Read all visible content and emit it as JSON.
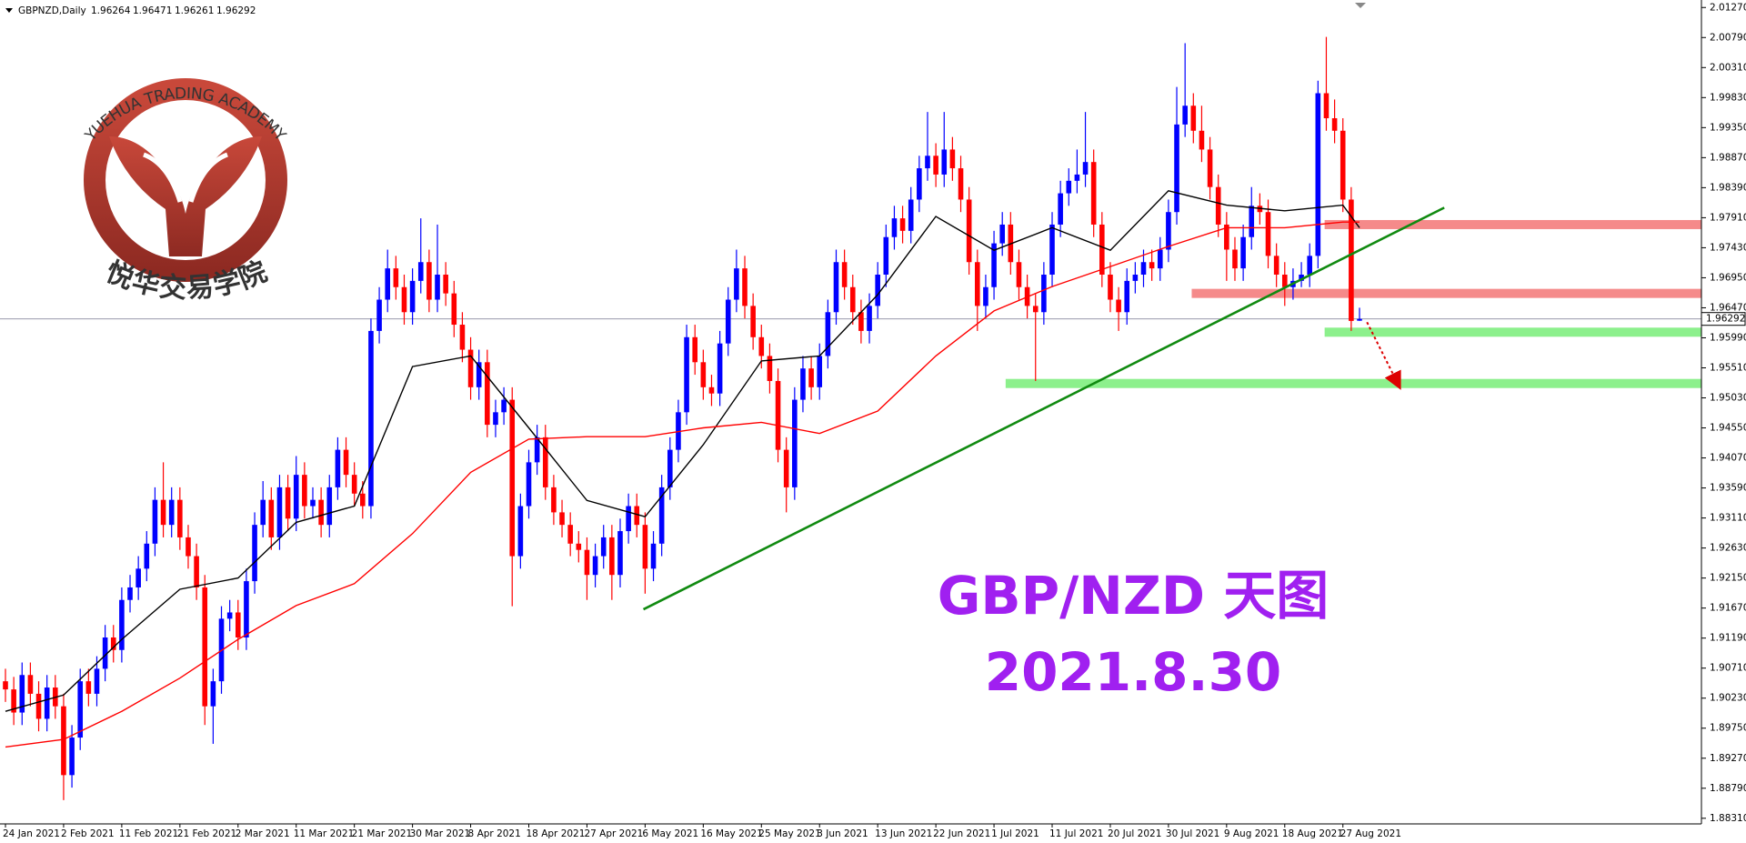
{
  "chart_data": {
    "type": "candlestick",
    "symbol": "GBPNZD,Daily",
    "title": "GBP/NZD 天图",
    "subtitle": "2021.8.30",
    "logo_text": "YUEHUA TRADING ACADEMY",
    "logo_subtitle": "悦华交易学院",
    "up_color": "#0000ff",
    "down_color": "#ff0000",
    "grid": false,
    "ylim": [
      1.8822,
      2.0139
    ],
    "yticks": [
      {
        "value": 2.0127,
        "label": "2.01270"
      },
      {
        "value": 2.0079,
        "label": "2.00790"
      },
      {
        "value": 2.0031,
        "label": "2.00310"
      },
      {
        "value": 1.9983,
        "label": "1.99830"
      },
      {
        "value": 1.9935,
        "label": "1.99350"
      },
      {
        "value": 1.9887,
        "label": "1.98870"
      },
      {
        "value": 1.9839,
        "label": "1.98390"
      },
      {
        "value": 1.9791,
        "label": "1.97910"
      },
      {
        "value": 1.9743,
        "label": "1.97430"
      },
      {
        "value": 1.9695,
        "label": "1.96950"
      },
      {
        "value": 1.9647,
        "label": "1.96470"
      },
      {
        "value": 1.9599,
        "label": "1.95990"
      },
      {
        "value": 1.9551,
        "label": "1.95510"
      },
      {
        "value": 1.9503,
        "label": "1.95030"
      },
      {
        "value": 1.9455,
        "label": "1.94550"
      },
      {
        "value": 1.9407,
        "label": "1.94070"
      },
      {
        "value": 1.9359,
        "label": "1.93590"
      },
      {
        "value": 1.9311,
        "label": "1.93110"
      },
      {
        "value": 1.9263,
        "label": "1.92630"
      },
      {
        "value": 1.9215,
        "label": "1.92150"
      },
      {
        "value": 1.9167,
        "label": "1.91670"
      },
      {
        "value": 1.9119,
        "label": "1.91190"
      },
      {
        "value": 1.9071,
        "label": "1.90710"
      },
      {
        "value": 1.9023,
        "label": "1.90230"
      },
      {
        "value": 1.8975,
        "label": "1.89750"
      },
      {
        "value": 1.8927,
        "label": "1.89270"
      },
      {
        "value": 1.8879,
        "label": "1.88790"
      },
      {
        "value": 1.8831,
        "label": "1.88310"
      }
    ],
    "categories": [
      "24 Jan 2021",
      null,
      null,
      null,
      null,
      null,
      null,
      "2 Feb 2021",
      null,
      null,
      null,
      null,
      null,
      null,
      "11 Feb 2021",
      null,
      null,
      null,
      null,
      null,
      null,
      "21 Feb 2021",
      null,
      null,
      null,
      null,
      null,
      null,
      "2 Mar 2021",
      null,
      null,
      null,
      null,
      null,
      null,
      "11 Mar 2021",
      null,
      null,
      null,
      null,
      null,
      null,
      "21 Mar 2021",
      null,
      null,
      null,
      null,
      null,
      null,
      "30 Mar 2021",
      null,
      null,
      null,
      null,
      null,
      null,
      "8 Apr 2021",
      null,
      null,
      null,
      null,
      null,
      null,
      "18 Apr 2021",
      null,
      null,
      null,
      null,
      null,
      null,
      "27 Apr 2021",
      null,
      null,
      null,
      null,
      null,
      null,
      "6 May 2021",
      null,
      null,
      null,
      null,
      null,
      null,
      "16 May 2021",
      null,
      null,
      null,
      null,
      null,
      null,
      "25 May 2021",
      null,
      null,
      null,
      null,
      null,
      null,
      "3 Jun 2021",
      null,
      null,
      null,
      null,
      null,
      null,
      "13 Jun 2021",
      null,
      null,
      null,
      null,
      null,
      null,
      "22 Jun 2021",
      null,
      null,
      null,
      null,
      null,
      null,
      "1 Jul 2021",
      null,
      null,
      null,
      null,
      null,
      null,
      "11 Jul 2021",
      null,
      null,
      null,
      null,
      null,
      null,
      "20 Jul 2021",
      null,
      null,
      null,
      null,
      null,
      null,
      "30 Jul 2021",
      null,
      null,
      null,
      null,
      null,
      null,
      "9 Aug 2021",
      null,
      null,
      null,
      null,
      null,
      null,
      "18 Aug 2021",
      null,
      null,
      null,
      null,
      null,
      null,
      "27 Aug 2021",
      null,
      null
    ],
    "candles": [
      [
        1.905,
        1.907,
        1.9017,
        1.9037
      ],
      [
        1.9037,
        1.9057,
        1.898,
        1.9
      ],
      [
        1.9,
        1.908,
        1.898,
        1.906
      ],
      [
        1.906,
        1.908,
        1.901,
        1.903
      ],
      [
        1.903,
        1.905,
        1.897,
        1.899
      ],
      [
        1.899,
        1.906,
        1.897,
        1.904
      ],
      [
        1.904,
        1.906,
        1.899,
        1.901
      ],
      [
        1.901,
        1.903,
        1.886,
        1.89
      ],
      [
        1.89,
        1.898,
        1.888,
        1.896
      ],
      [
        1.896,
        1.907,
        1.894,
        1.905
      ],
      [
        1.905,
        1.907,
        1.901,
        1.903
      ],
      [
        1.903,
        1.909,
        1.901,
        1.907
      ],
      [
        1.907,
        1.914,
        1.905,
        1.912
      ],
      [
        1.912,
        1.914,
        1.908,
        1.91
      ],
      [
        1.91,
        1.92,
        1.908,
        1.918
      ],
      [
        1.918,
        1.922,
        1.916,
        1.92
      ],
      [
        1.92,
        1.925,
        1.918,
        1.923
      ],
      [
        1.923,
        1.929,
        1.921,
        1.927
      ],
      [
        1.927,
        1.936,
        1.925,
        1.934
      ],
      [
        1.934,
        1.94,
        1.928,
        1.93
      ],
      [
        1.93,
        1.936,
        1.928,
        1.934
      ],
      [
        1.934,
        1.936,
        1.926,
        1.928
      ],
      [
        1.928,
        1.93,
        1.923,
        1.925
      ],
      [
        1.925,
        1.927,
        1.918,
        1.92
      ],
      [
        1.92,
        1.922,
        1.898,
        1.901
      ],
      [
        1.901,
        1.907,
        1.895,
        1.905
      ],
      [
        1.905,
        1.917,
        1.903,
        1.915
      ],
      [
        1.915,
        1.918,
        1.913,
        1.916
      ],
      [
        1.916,
        1.918,
        1.91,
        1.912
      ],
      [
        1.912,
        1.923,
        1.91,
        1.921
      ],
      [
        1.921,
        1.932,
        1.919,
        1.93
      ],
      [
        1.93,
        1.937,
        1.928,
        1.934
      ],
      [
        1.934,
        1.936,
        1.926,
        1.928
      ],
      [
        1.928,
        1.938,
        1.926,
        1.936
      ],
      [
        1.936,
        1.938,
        1.929,
        1.931
      ],
      [
        1.931,
        1.941,
        1.929,
        1.938
      ],
      [
        1.938,
        1.94,
        1.931,
        1.933
      ],
      [
        1.933,
        1.936,
        1.931,
        1.934
      ],
      [
        1.934,
        1.936,
        1.928,
        1.93
      ],
      [
        1.93,
        1.938,
        1.928,
        1.936
      ],
      [
        1.936,
        1.944,
        1.934,
        1.942
      ],
      [
        1.942,
        1.944,
        1.936,
        1.938
      ],
      [
        1.938,
        1.94,
        1.933,
        1.935
      ],
      [
        1.935,
        1.937,
        1.931,
        1.933
      ],
      [
        1.933,
        1.963,
        1.931,
        1.961
      ],
      [
        1.961,
        1.968,
        1.959,
        1.966
      ],
      [
        1.966,
        1.974,
        1.964,
        1.971
      ],
      [
        1.971,
        1.973,
        1.966,
        1.968
      ],
      [
        1.968,
        1.97,
        1.962,
        1.964
      ],
      [
        1.964,
        1.971,
        1.962,
        1.969
      ],
      [
        1.969,
        1.979,
        1.967,
        1.972
      ],
      [
        1.972,
        1.974,
        1.964,
        1.966
      ],
      [
        1.966,
        1.978,
        1.964,
        1.97
      ],
      [
        1.97,
        1.972,
        1.965,
        1.967
      ],
      [
        1.967,
        1.969,
        1.96,
        1.962
      ],
      [
        1.962,
        1.964,
        1.956,
        1.958
      ],
      [
        1.958,
        1.96,
        1.95,
        1.952
      ],
      [
        1.952,
        1.958,
        1.95,
        1.956
      ],
      [
        1.956,
        1.958,
        1.944,
        1.946
      ],
      [
        1.946,
        1.95,
        1.944,
        1.948
      ],
      [
        1.948,
        1.952,
        1.946,
        1.95
      ],
      [
        1.95,
        1.952,
        1.917,
        1.925
      ],
      [
        1.925,
        1.935,
        1.923,
        1.933
      ],
      [
        1.933,
        1.942,
        1.931,
        1.94
      ],
      [
        1.94,
        1.946,
        1.938,
        1.944
      ],
      [
        1.944,
        1.946,
        1.934,
        1.936
      ],
      [
        1.936,
        1.938,
        1.93,
        1.932
      ],
      [
        1.932,
        1.934,
        1.928,
        1.93
      ],
      [
        1.93,
        1.932,
        1.925,
        1.927
      ],
      [
        1.927,
        1.929,
        1.924,
        1.926
      ],
      [
        1.926,
        1.928,
        1.918,
        1.922
      ],
      [
        1.922,
        1.927,
        1.92,
        1.925
      ],
      [
        1.925,
        1.93,
        1.923,
        1.928
      ],
      [
        1.928,
        1.93,
        1.918,
        1.922
      ],
      [
        1.922,
        1.931,
        1.92,
        1.929
      ],
      [
        1.929,
        1.935,
        1.927,
        1.933
      ],
      [
        1.933,
        1.935,
        1.928,
        1.93
      ],
      [
        1.93,
        1.932,
        1.919,
        1.923
      ],
      [
        1.923,
        1.929,
        1.921,
        1.927
      ],
      [
        1.927,
        1.938,
        1.925,
        1.936
      ],
      [
        1.936,
        1.944,
        1.934,
        1.942
      ],
      [
        1.942,
        1.95,
        1.94,
        1.948
      ],
      [
        1.948,
        1.962,
        1.946,
        1.96
      ],
      [
        1.96,
        1.962,
        1.954,
        1.956
      ],
      [
        1.956,
        1.958,
        1.95,
        1.952
      ],
      [
        1.952,
        1.954,
        1.949,
        1.951
      ],
      [
        1.951,
        1.961,
        1.949,
        1.959
      ],
      [
        1.959,
        1.968,
        1.957,
        1.966
      ],
      [
        1.966,
        1.974,
        1.964,
        1.971
      ],
      [
        1.971,
        1.973,
        1.963,
        1.965
      ],
      [
        1.965,
        1.967,
        1.958,
        1.96
      ],
      [
        1.96,
        1.962,
        1.955,
        1.957
      ],
      [
        1.957,
        1.959,
        1.951,
        1.953
      ],
      [
        1.953,
        1.955,
        1.94,
        1.942
      ],
      [
        1.942,
        1.944,
        1.932,
        1.936
      ],
      [
        1.936,
        1.952,
        1.934,
        1.95
      ],
      [
        1.95,
        1.957,
        1.948,
        1.955
      ],
      [
        1.955,
        1.957,
        1.95,
        1.952
      ],
      [
        1.952,
        1.959,
        1.95,
        1.957
      ],
      [
        1.957,
        1.966,
        1.955,
        1.964
      ],
      [
        1.964,
        1.974,
        1.962,
        1.972
      ],
      [
        1.972,
        1.974,
        1.966,
        1.968
      ],
      [
        1.968,
        1.97,
        1.962,
        1.964
      ],
      [
        1.964,
        1.966,
        1.959,
        1.961
      ],
      [
        1.961,
        1.967,
        1.959,
        1.965
      ],
      [
        1.965,
        1.972,
        1.963,
        1.97
      ],
      [
        1.97,
        1.978,
        1.968,
        1.976
      ],
      [
        1.976,
        1.981,
        1.974,
        1.979
      ],
      [
        1.979,
        1.981,
        1.975,
        1.977
      ],
      [
        1.977,
        1.984,
        1.975,
        1.982
      ],
      [
        1.982,
        1.989,
        1.98,
        1.987
      ],
      [
        1.987,
        1.996,
        1.985,
        1.989
      ],
      [
        1.989,
        1.991,
        1.984,
        1.986
      ],
      [
        1.986,
        1.996,
        1.984,
        1.99
      ],
      [
        1.99,
        1.992,
        1.985,
        1.987
      ],
      [
        1.987,
        1.989,
        1.98,
        1.982
      ],
      [
        1.982,
        1.984,
        1.97,
        1.972
      ],
      [
        1.972,
        1.974,
        1.961,
        1.965
      ],
      [
        1.965,
        1.97,
        1.963,
        1.968
      ],
      [
        1.968,
        1.977,
        1.966,
        1.975
      ],
      [
        1.975,
        1.98,
        1.973,
        1.978
      ],
      [
        1.978,
        1.98,
        1.97,
        1.972
      ],
      [
        1.972,
        1.974,
        1.966,
        1.968
      ],
      [
        1.968,
        1.97,
        1.963,
        1.965
      ],
      [
        1.965,
        1.967,
        1.953,
        1.964
      ],
      [
        1.964,
        1.972,
        1.962,
        1.97
      ],
      [
        1.97,
        1.98,
        1.968,
        1.978
      ],
      [
        1.978,
        1.985,
        1.976,
        1.983
      ],
      [
        1.983,
        1.987,
        1.981,
        1.985
      ],
      [
        1.985,
        1.99,
        1.983,
        1.986
      ],
      [
        1.986,
        1.996,
        1.984,
        1.988
      ],
      [
        1.988,
        1.99,
        1.976,
        1.978
      ],
      [
        1.978,
        1.98,
        1.968,
        1.97
      ],
      [
        1.97,
        1.972,
        1.964,
        1.966
      ],
      [
        1.966,
        1.968,
        1.961,
        1.964
      ],
      [
        1.964,
        1.971,
        1.962,
        1.969
      ],
      [
        1.969,
        1.972,
        1.967,
        1.97
      ],
      [
        1.97,
        1.974,
        1.968,
        1.972
      ],
      [
        1.972,
        1.974,
        1.969,
        1.971
      ],
      [
        1.971,
        1.976,
        1.969,
        1.974
      ],
      [
        1.974,
        1.982,
        1.972,
        1.98
      ],
      [
        1.98,
        2.0,
        1.978,
        1.994
      ],
      [
        1.994,
        2.007,
        1.992,
        1.997
      ],
      [
        1.997,
        1.999,
        1.991,
        1.993
      ],
      [
        1.993,
        1.997,
        1.988,
        1.99
      ],
      [
        1.99,
        1.992,
        1.982,
        1.984
      ],
      [
        1.984,
        1.986,
        1.976,
        1.978
      ],
      [
        1.978,
        1.98,
        1.969,
        1.974
      ],
      [
        1.974,
        1.976,
        1.969,
        1.971
      ],
      [
        1.971,
        1.978,
        1.969,
        1.976
      ],
      [
        1.976,
        1.984,
        1.974,
        1.981
      ],
      [
        1.981,
        1.983,
        1.978,
        1.98
      ],
      [
        1.98,
        1.982,
        1.971,
        1.973
      ],
      [
        1.973,
        1.975,
        1.968,
        1.97
      ],
      [
        1.97,
        1.972,
        1.965,
        1.968
      ],
      [
        1.968,
        1.971,
        1.966,
        1.969
      ],
      [
        1.969,
        1.972,
        1.968,
        1.97
      ],
      [
        1.97,
        1.975,
        1.968,
        1.973
      ],
      [
        1.973,
        2.001,
        1.971,
        1.999
      ],
      [
        1.999,
        2.008,
        1.993,
        1.995
      ],
      [
        1.995,
        1.998,
        1.991,
        1.993
      ],
      [
        1.993,
        1.995,
        1.98,
        1.982
      ],
      [
        1.982,
        1.984,
        1.961,
        1.9626
      ],
      [
        1.96264,
        1.96471,
        1.96261,
        1.96292
      ]
    ],
    "overlays": [
      {
        "color": "#000000",
        "x": [
          0,
          7,
          14,
          21,
          28,
          35,
          42,
          49,
          56,
          63,
          70,
          77,
          84,
          91,
          98,
          105,
          112,
          119,
          126,
          133,
          140,
          147,
          154,
          161,
          163
        ],
        "values": [
          1.9002,
          1.9028,
          1.9117,
          1.9197,
          1.9215,
          1.9304,
          1.933,
          1.9553,
          1.957,
          1.9455,
          1.9339,
          1.9313,
          1.9428,
          1.9562,
          1.957,
          1.9668,
          1.9793,
          1.9739,
          1.9775,
          1.9739,
          1.9834,
          1.9811,
          1.9802,
          1.9811,
          1.9775
        ]
      },
      {
        "color": "#ff0000",
        "x": [
          0,
          7,
          14,
          21,
          28,
          35,
          42,
          49,
          56,
          63,
          70,
          77,
          84,
          91,
          98,
          105,
          112,
          119,
          126,
          133,
          140,
          147,
          154,
          161,
          163
        ],
        "values": [
          1.8945,
          1.8957,
          1.9002,
          1.9055,
          1.9117,
          1.9171,
          1.9206,
          1.9286,
          1.9384,
          1.9437,
          1.9441,
          1.9441,
          1.9455,
          1.9464,
          1.9446,
          1.9482,
          1.957,
          1.9642,
          1.9681,
          1.9713,
          1.9745,
          1.9775,
          1.9775,
          1.9784,
          1.9784
        ]
      }
    ],
    "zones": [
      {
        "y": 1.978,
        "x0": 158.8,
        "color": "#f58a8a"
      },
      {
        "y": 1.967,
        "x0": 142.8,
        "color": "#f58a8a"
      },
      {
        "y": 1.9608,
        "x0": 158.8,
        "color": "#8cf08c"
      },
      {
        "y": 1.9526,
        "x0": 120.4,
        "color": "#8cf08c"
      }
    ],
    "trendline": {
      "x": [
        76.8,
        173.2
      ],
      "y": [
        1.9165,
        1.9807
      ],
      "color": "#108a10"
    },
    "arrow": {
      "x": [
        163.9,
        167.6
      ],
      "y": [
        1.9624,
        1.9526
      ],
      "color": "#dd0000"
    }
  }
}
